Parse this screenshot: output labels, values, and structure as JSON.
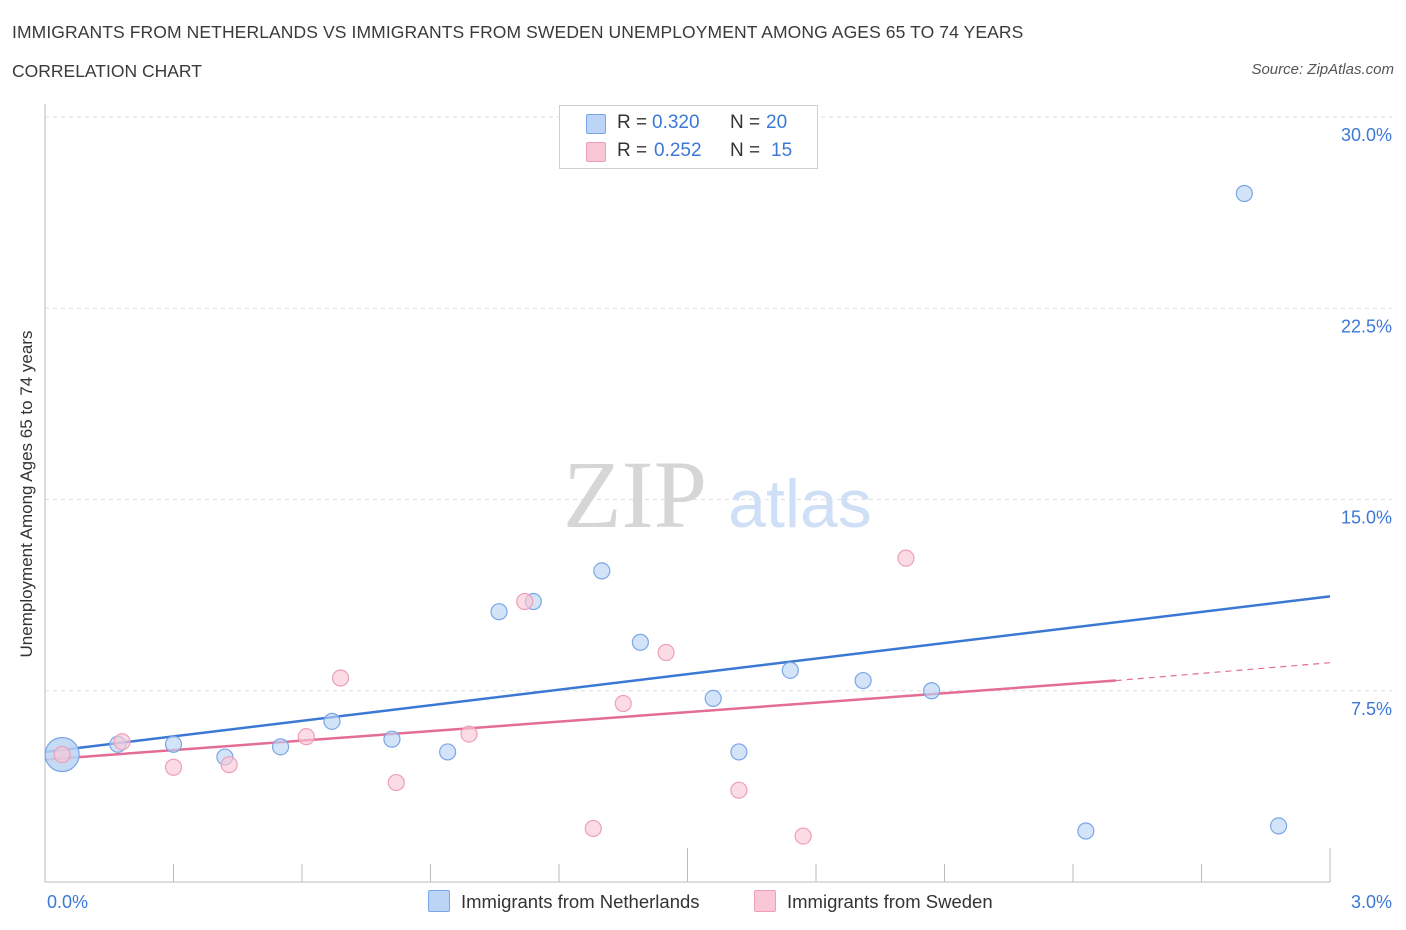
{
  "header": {
    "title": "IMMIGRANTS FROM NETHERLANDS VS IMMIGRANTS FROM SWEDEN UNEMPLOYMENT AMONG AGES 65 TO 74 YEARS",
    "subtitle": "CORRELATION CHART",
    "source": "Source: ZipAtlas.com"
  },
  "watermark": {
    "zip": "ZIP",
    "atlas": "atlas"
  },
  "legend_top": {
    "rows": [
      {
        "r_label": "R =",
        "r_value": "0.320",
        "n_label": "N =",
        "n_value": "20"
      },
      {
        "r_label": "R =",
        "r_value": "0.252",
        "n_label": "N =",
        "n_value": "15"
      }
    ]
  },
  "colors": {
    "netherlands_fill": "#bcd4f5",
    "netherlands_stroke": "#7aa6e6",
    "netherlands_line": "#3a78d4",
    "sweden_fill": "#f9c7d6",
    "sweden_stroke": "#eda0b7",
    "sweden_line": "#e36d95",
    "grid": "#dddddd",
    "axis_text": "#3b78d8"
  },
  "chart_data": {
    "type": "scatter",
    "title": "IMMIGRANTS FROM NETHERLANDS VS IMMIGRANTS FROM SWEDEN UNEMPLOYMENT AMONG AGES 65 TO 74 YEARS",
    "subtitle": "CORRELATION CHART",
    "xlabel": "",
    "ylabel": "Unemployment Among Ages 65 to 74 years",
    "xlim": [
      0,
      3.0
    ],
    "ylim": [
      0,
      30.0
    ],
    "x_tick_labels": [
      "0.0%",
      "3.0%"
    ],
    "y_ticks": [
      7.5,
      15.0,
      22.5,
      30.0
    ],
    "y_tick_labels": [
      "7.5%",
      "15.0%",
      "22.5%",
      "30.0%"
    ],
    "grid": true,
    "legend_position": "bottom-center",
    "series": [
      {
        "name": "Immigrants from Netherlands",
        "R": 0.32,
        "N": 20,
        "points": [
          [
            0.04,
            5.0
          ],
          [
            0.17,
            5.4
          ],
          [
            0.3,
            5.4
          ],
          [
            0.42,
            4.9
          ],
          [
            0.55,
            5.3
          ],
          [
            0.67,
            6.3
          ],
          [
            0.81,
            5.6
          ],
          [
            0.94,
            5.1
          ],
          [
            1.06,
            10.6
          ],
          [
            1.14,
            11.0
          ],
          [
            1.3,
            12.2
          ],
          [
            1.39,
            9.4
          ],
          [
            1.56,
            7.2
          ],
          [
            1.62,
            5.1
          ],
          [
            1.74,
            8.3
          ],
          [
            1.91,
            7.9
          ],
          [
            2.07,
            7.5
          ],
          [
            2.43,
            2.0
          ],
          [
            2.8,
            27.0
          ],
          [
            2.88,
            2.2
          ]
        ],
        "trend": {
          "x0": 0.0,
          "y0": 5.1,
          "x1": 3.0,
          "y1": 11.2
        }
      },
      {
        "name": "Immigrants from Sweden",
        "R": 0.252,
        "N": 15,
        "points": [
          [
            0.04,
            5.0
          ],
          [
            0.18,
            5.5
          ],
          [
            0.3,
            4.5
          ],
          [
            0.43,
            4.6
          ],
          [
            0.61,
            5.7
          ],
          [
            0.69,
            8.0
          ],
          [
            0.82,
            3.9
          ],
          [
            0.99,
            5.8
          ],
          [
            1.12,
            11.0
          ],
          [
            1.28,
            2.1
          ],
          [
            1.35,
            7.0
          ],
          [
            1.45,
            9.0
          ],
          [
            1.62,
            3.6
          ],
          [
            1.77,
            1.8
          ],
          [
            2.01,
            12.7
          ]
        ],
        "trend": {
          "x0": 0.0,
          "y0": 4.8,
          "x1": 2.5,
          "y1": 7.9,
          "dashed_to_x": 3.0,
          "dashed_to_y": 8.6
        }
      }
    ]
  }
}
